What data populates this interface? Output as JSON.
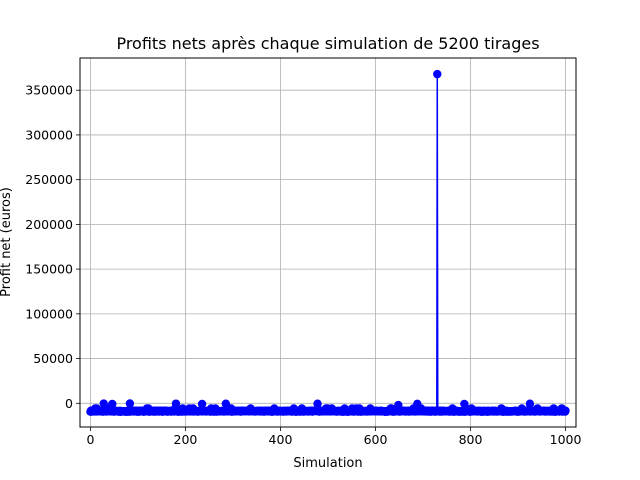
{
  "chart_data": {
    "type": "line",
    "title": "Profits nets après chaque simulation de 5200 tirages",
    "xlabel": "Simulation",
    "ylabel": "Profit net (euros)",
    "xlim": [
      -22,
      1022
    ],
    "ylim": [
      -26500,
      386000
    ],
    "xticks": [
      0,
      200,
      400,
      600,
      800,
      1000
    ],
    "xtick_labels": [
      "0",
      "200",
      "400",
      "600",
      "800",
      "1000"
    ],
    "yticks": [
      0,
      50000,
      100000,
      150000,
      200000,
      250000,
      300000,
      350000
    ],
    "ytick_labels": [
      "0",
      "50000",
      "100000",
      "150000",
      "200000",
      "250000",
      "300000",
      "350000"
    ],
    "grid": true,
    "series_color": "#0000ff",
    "marker": "circle",
    "baseline_profit": -8800,
    "notable_points": [
      {
        "x": 28,
        "y": -300
      },
      {
        "x": 46,
        "y": -700
      },
      {
        "x": 83,
        "y": -200
      },
      {
        "x": 180,
        "y": -400
      },
      {
        "x": 235,
        "y": -700
      },
      {
        "x": 285,
        "y": -500
      },
      {
        "x": 478,
        "y": -500
      },
      {
        "x": 648,
        "y": -2000
      },
      {
        "x": 688,
        "y": -600
      },
      {
        "x": 730,
        "y": 368000
      },
      {
        "x": 787,
        "y": -700
      },
      {
        "x": 925,
        "y": -500
      }
    ],
    "n_simulations": 1000
  }
}
